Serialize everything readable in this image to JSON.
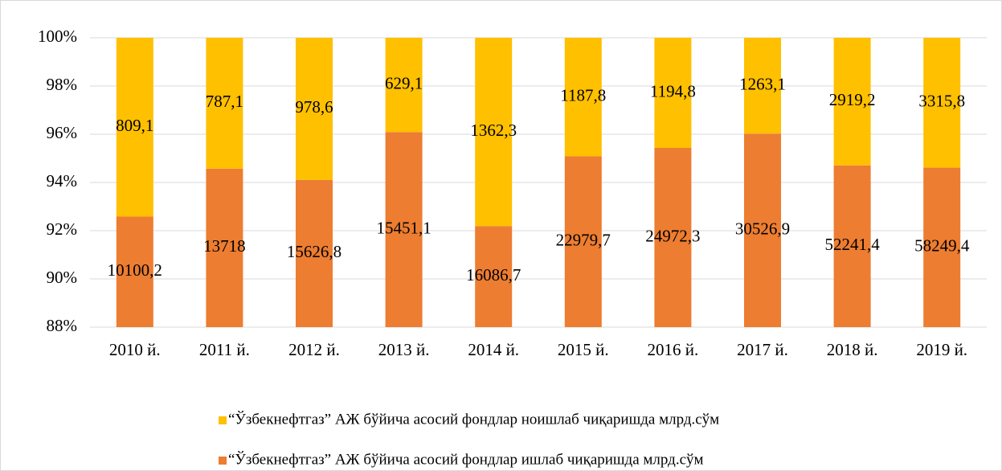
{
  "chart_data": {
    "type": "bar",
    "stacking": "percent",
    "categories": [
      "2010 й.",
      "2011 й.",
      "2012 й.",
      "2013 й.",
      "2014 й.",
      "2015 й.",
      "2016 й.",
      "2017 й.",
      "2018 й.",
      "2019 й."
    ],
    "series": [
      {
        "name": "“Ўзбекнефтгаз” АЖ бўйича асосий фондлар ишлаб чиқаришда млрд.сўм",
        "color": "#ED7D31",
        "values": [
          10100.2,
          13718,
          15626.8,
          15451.1,
          16086.7,
          22979.7,
          24972.3,
          30526.9,
          52241.4,
          58249.4
        ],
        "value_labels": [
          "10100,2",
          "13718",
          "15626,8",
          "15451,1",
          "16086,7",
          "22979,7",
          "24972,3",
          "30526,9",
          "52241,4",
          "58249,4"
        ]
      },
      {
        "name": "“Ўзбекнефтгаз” АЖ бўйича асосий фондлар ноишлаб чиқаришда млрд.сўм",
        "color": "#FFC000",
        "values": [
          809.1,
          787.1,
          978.6,
          629.1,
          1362.3,
          1187.8,
          1194.8,
          1263.1,
          2919.2,
          3315.8
        ],
        "value_labels": [
          "809,1",
          "787,1",
          "978,6",
          "629,1",
          "1362,3",
          "1187,8",
          "1194,8",
          "1263,1",
          "2919,2",
          "3315,8"
        ]
      }
    ],
    "ylim": [
      88,
      100
    ],
    "yticks": [
      {
        "value": 88,
        "label": "88%"
      },
      {
        "value": 90,
        "label": "90%"
      },
      {
        "value": 92,
        "label": "92%"
      },
      {
        "value": 94,
        "label": "94%"
      },
      {
        "value": 96,
        "label": "96%"
      },
      {
        "value": 98,
        "label": "98%"
      },
      {
        "value": 100,
        "label": "100%"
      }
    ],
    "grid": true,
    "legend": "bottom"
  }
}
